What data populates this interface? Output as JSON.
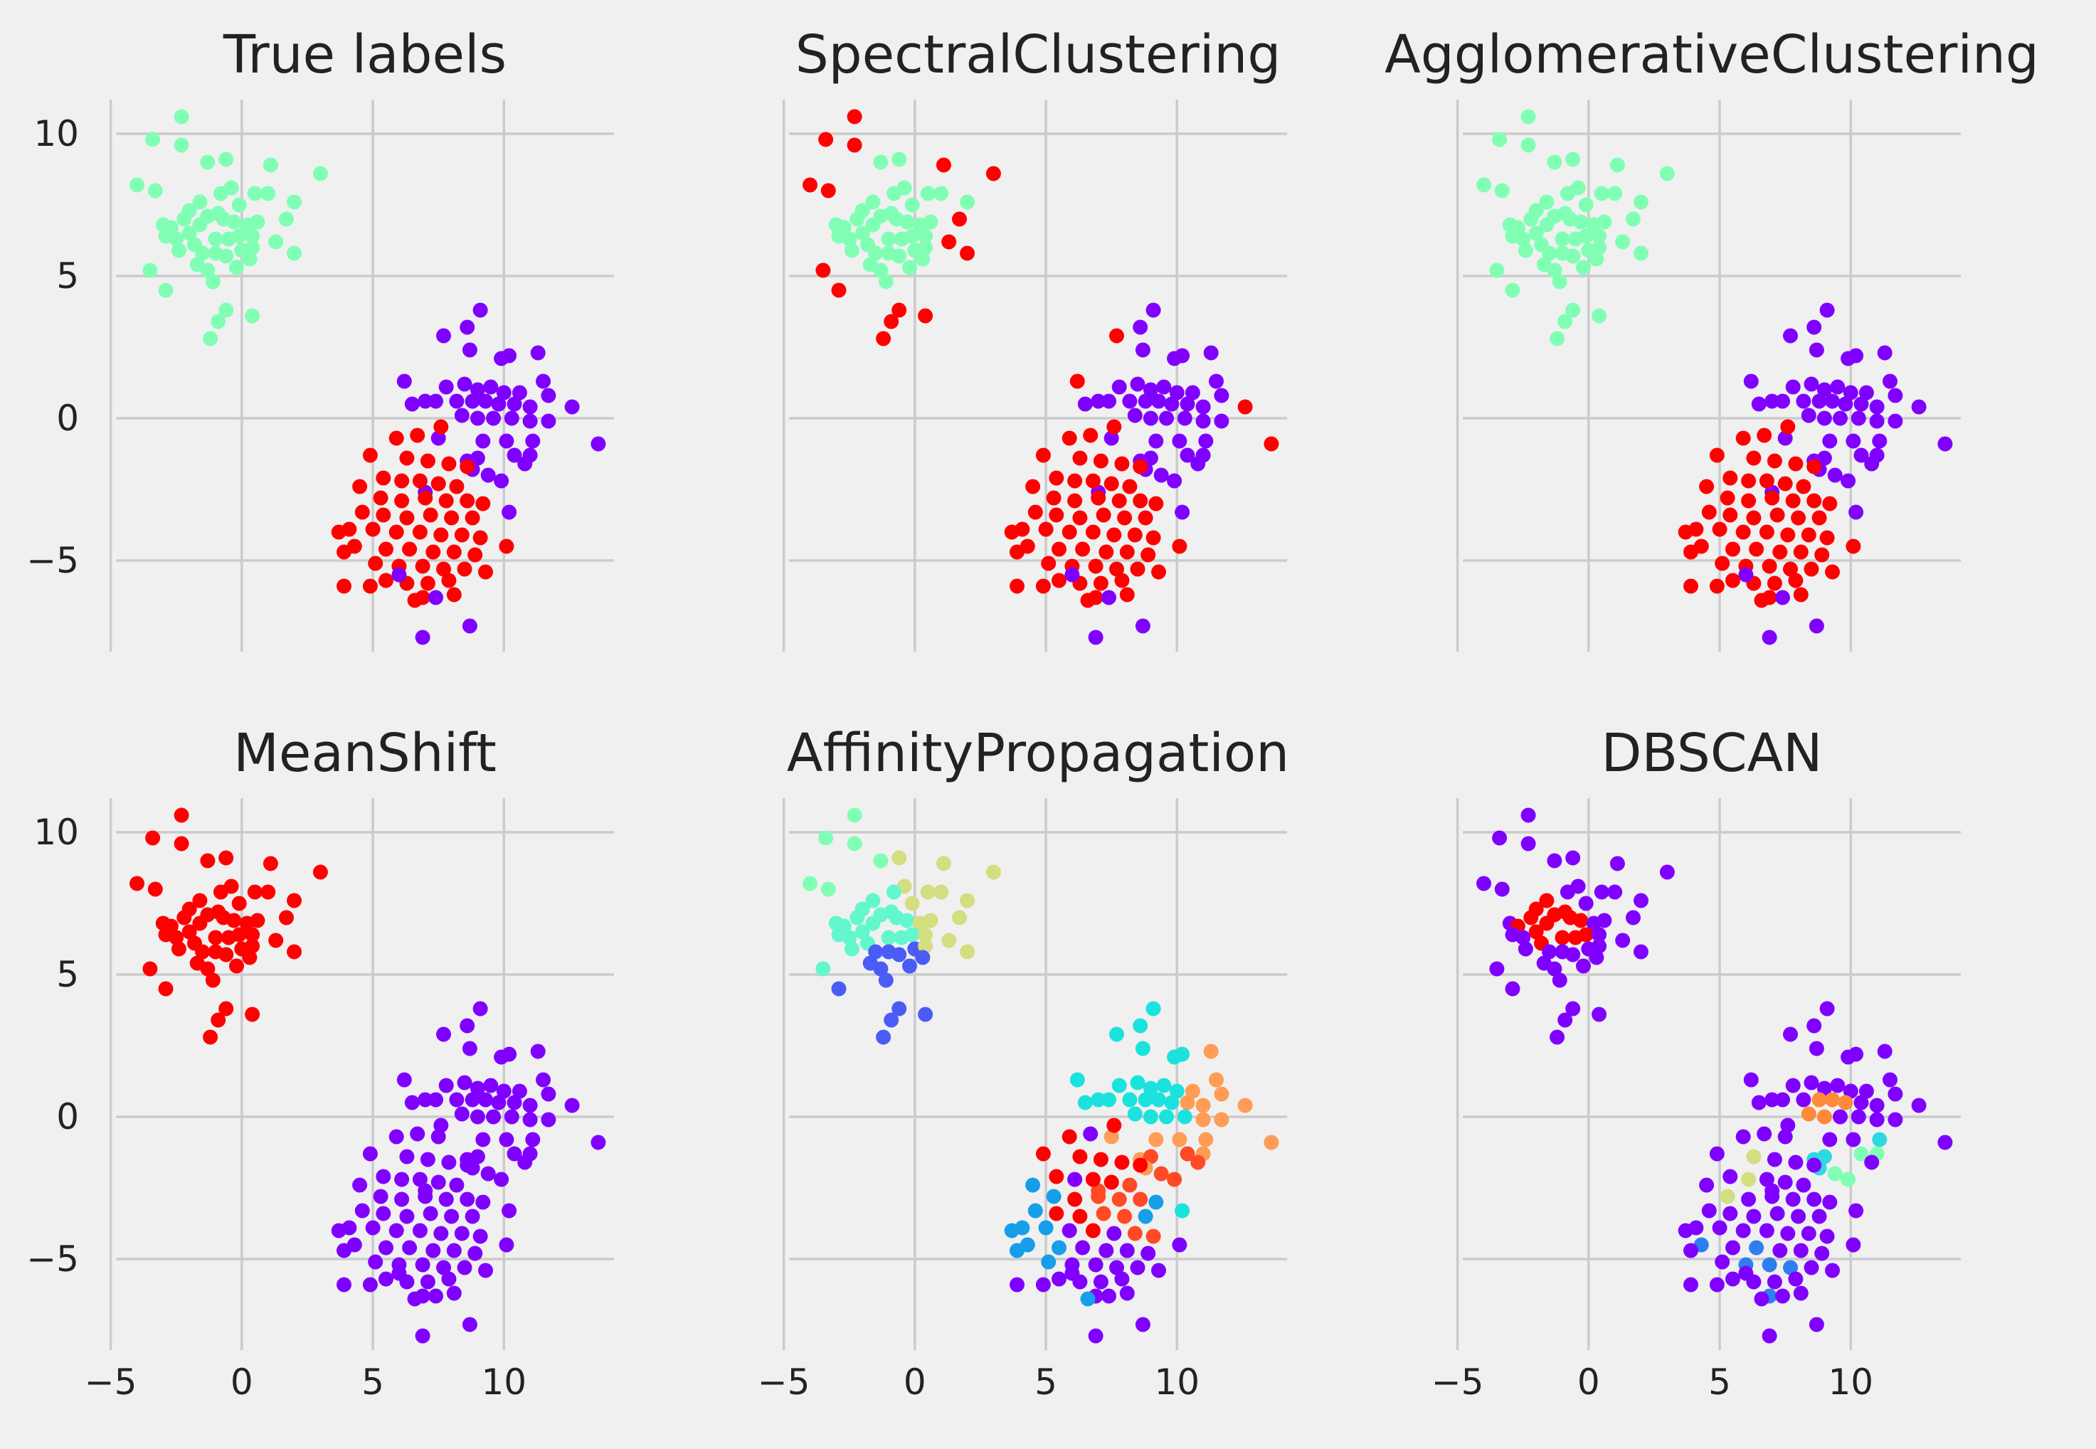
{
  "chart_data": {
    "type": "scatter",
    "x_ticks": [
      "−5",
      "0",
      "5",
      "10"
    ],
    "y_ticks": [
      "10",
      "5",
      "0",
      "−5"
    ],
    "x_tick_values": [
      -5,
      0,
      5,
      10
    ],
    "y_tick_values": [
      10,
      5,
      0,
      -5
    ],
    "xlim": [
      -4.8,
      14.2
    ],
    "ylim": [
      -8.2,
      11.2
    ],
    "grid": true,
    "layout": "2 rows x 3 columns, shared axes",
    "colors": {
      "red": "#ff0000",
      "purple": "#8000ff",
      "mint": "#80ffb4",
      "aqua": "#1ce2de",
      "orange": "#ff9c55",
      "orange_red": "#ff4a25",
      "khaki": "#d4dd80",
      "sky": "#169ee8",
      "royal": "#4a5cf5",
      "cobalt": "#2e7ef0",
      "teal": "#62f7cc",
      "light_aqua": "#2dd9e0",
      "dark_orange": "#ff8a3a"
    },
    "points": [
      [
        -2.3,
        10.6
      ],
      [
        -3.4,
        9.8
      ],
      [
        -2.3,
        9.6
      ],
      [
        -1.3,
        9.0
      ],
      [
        -0.6,
        9.1
      ],
      [
        -3.3,
        8.0
      ],
      [
        -0.4,
        8.1
      ],
      [
        -4.0,
        8.2
      ],
      [
        -0.8,
        7.9
      ],
      [
        0.5,
        7.9
      ],
      [
        1.0,
        7.9
      ],
      [
        3.0,
        8.6
      ],
      [
        1.1,
        8.9
      ],
      [
        -3.0,
        6.8
      ],
      [
        -2.7,
        6.7
      ],
      [
        -2.0,
        6.5
      ],
      [
        -1.6,
        6.8
      ],
      [
        -1.3,
        7.1
      ],
      [
        -0.9,
        7.2
      ],
      [
        -0.7,
        7.0
      ],
      [
        -0.3,
        6.9
      ],
      [
        0.2,
        6.8
      ],
      [
        0.6,
        6.9
      ],
      [
        -2.5,
        6.3
      ],
      [
        -1.8,
        6.1
      ],
      [
        -1.0,
        6.3
      ],
      [
        -0.5,
        6.3
      ],
      [
        -0.1,
        6.4
      ],
      [
        0.4,
        6.4
      ],
      [
        -2.9,
        6.4
      ],
      [
        -2.4,
        5.9
      ],
      [
        -1.5,
        5.8
      ],
      [
        -1.0,
        5.8
      ],
      [
        -0.6,
        5.7
      ],
      [
        0.0,
        5.9
      ],
      [
        0.4,
        6.0
      ],
      [
        1.3,
        6.2
      ],
      [
        2.0,
        5.8
      ],
      [
        -1.7,
        5.4
      ],
      [
        -1.3,
        5.2
      ],
      [
        -0.2,
        5.3
      ],
      [
        0.3,
        5.6
      ],
      [
        -3.5,
        5.2
      ],
      [
        -1.1,
        4.8
      ],
      [
        -2.9,
        4.5
      ],
      [
        -0.6,
        3.8
      ],
      [
        0.4,
        3.6
      ],
      [
        -0.9,
        3.4
      ],
      [
        -1.2,
        2.8
      ],
      [
        1.7,
        7.0
      ],
      [
        2.0,
        7.6
      ],
      [
        -2.0,
        7.3
      ],
      [
        -0.1,
        7.5
      ],
      [
        -1.6,
        7.6
      ],
      [
        -2.2,
        7.0
      ],
      [
        7.7,
        2.9
      ],
      [
        8.6,
        3.2
      ],
      [
        9.1,
        3.8
      ],
      [
        8.7,
        2.4
      ],
      [
        9.9,
        2.1
      ],
      [
        10.2,
        2.2
      ],
      [
        11.3,
        2.3
      ],
      [
        6.2,
        1.3
      ],
      [
        7.8,
        1.1
      ],
      [
        8.5,
        1.2
      ],
      [
        9.0,
        1.0
      ],
      [
        9.5,
        1.1
      ],
      [
        10.0,
        0.9
      ],
      [
        10.6,
        0.9
      ],
      [
        11.5,
        1.3
      ],
      [
        6.5,
        0.5
      ],
      [
        7.0,
        0.6
      ],
      [
        7.4,
        0.6
      ],
      [
        8.2,
        0.6
      ],
      [
        8.8,
        0.6
      ],
      [
        9.3,
        0.6
      ],
      [
        9.8,
        0.5
      ],
      [
        10.4,
        0.5
      ],
      [
        11.0,
        0.4
      ],
      [
        11.7,
        0.8
      ],
      [
        12.6,
        0.4
      ],
      [
        8.4,
        0.1
      ],
      [
        9.0,
        0.0
      ],
      [
        9.6,
        0.0
      ],
      [
        10.3,
        0.0
      ],
      [
        11.0,
        -0.1
      ],
      [
        11.7,
        -0.1
      ],
      [
        13.6,
        -0.9
      ],
      [
        9.2,
        -0.8
      ],
      [
        10.1,
        -0.8
      ],
      [
        11.1,
        -0.8
      ],
      [
        8.6,
        -1.5
      ],
      [
        9.0,
        -1.4
      ],
      [
        10.4,
        -1.3
      ],
      [
        11.0,
        -1.3
      ],
      [
        8.8,
        -1.8
      ],
      [
        9.4,
        -2.0
      ],
      [
        9.9,
        -2.2
      ],
      [
        10.8,
        -1.6
      ],
      [
        7.5,
        -0.7
      ],
      [
        10.2,
        -3.3
      ],
      [
        7.0,
        -2.6
      ],
      [
        6.7,
        -0.6
      ],
      [
        7.6,
        -0.3
      ],
      [
        5.9,
        -0.7
      ],
      [
        4.9,
        -1.3
      ],
      [
        6.3,
        -1.4
      ],
      [
        7.1,
        -1.5
      ],
      [
        7.9,
        -1.6
      ],
      [
        8.6,
        -1.7
      ],
      [
        5.4,
        -2.1
      ],
      [
        6.1,
        -2.2
      ],
      [
        6.8,
        -2.2
      ],
      [
        7.5,
        -2.3
      ],
      [
        8.2,
        -2.4
      ],
      [
        4.5,
        -2.4
      ],
      [
        5.3,
        -2.8
      ],
      [
        6.1,
        -2.9
      ],
      [
        7.0,
        -2.8
      ],
      [
        7.8,
        -2.9
      ],
      [
        8.6,
        -2.9
      ],
      [
        9.2,
        -3.0
      ],
      [
        4.6,
        -3.3
      ],
      [
        5.4,
        -3.4
      ],
      [
        6.3,
        -3.5
      ],
      [
        7.2,
        -3.4
      ],
      [
        8.0,
        -3.5
      ],
      [
        8.8,
        -3.5
      ],
      [
        4.1,
        -3.9
      ],
      [
        5.0,
        -3.9
      ],
      [
        5.9,
        -4.0
      ],
      [
        6.8,
        -4.0
      ],
      [
        7.6,
        -4.1
      ],
      [
        8.4,
        -4.1
      ],
      [
        9.1,
        -4.2
      ],
      [
        3.7,
        -4.0
      ],
      [
        4.3,
        -4.5
      ],
      [
        5.5,
        -4.6
      ],
      [
        6.4,
        -4.6
      ],
      [
        7.3,
        -4.7
      ],
      [
        8.1,
        -4.7
      ],
      [
        8.9,
        -4.8
      ],
      [
        10.1,
        -4.5
      ],
      [
        3.9,
        -4.7
      ],
      [
        5.1,
        -5.1
      ],
      [
        6.0,
        -5.2
      ],
      [
        6.9,
        -5.2
      ],
      [
        7.7,
        -5.3
      ],
      [
        8.5,
        -5.3
      ],
      [
        9.3,
        -5.4
      ],
      [
        5.5,
        -5.7
      ],
      [
        6.3,
        -5.8
      ],
      [
        7.1,
        -5.8
      ],
      [
        7.9,
        -5.7
      ],
      [
        4.9,
        -5.9
      ],
      [
        6.9,
        -6.3
      ],
      [
        8.1,
        -6.2
      ],
      [
        3.9,
        -5.9
      ],
      [
        6.6,
        -6.4
      ],
      [
        7.4,
        -6.3
      ],
      [
        8.7,
        -7.3
      ],
      [
        6.9,
        -7.7
      ],
      [
        6.0,
        -5.5
      ]
    ],
    "panels": [
      {
        "title": "True labels",
        "default_color": "#8000ff",
        "runs": [
          [
            0,
            55,
            "#80ffb4"
          ],
          [
            55,
            102,
            "#8000ff"
          ],
          [
            102,
            159,
            "#ff0000"
          ]
        ]
      },
      {
        "title": "SpectralClustering",
        "default_color": "#8000ff",
        "runs": [
          [
            0,
            55,
            "#80ffb4"
          ],
          [
            55,
            102,
            "#8000ff"
          ],
          [
            102,
            159,
            "#ff0000"
          ]
        ],
        "overrides": [
          [
            0,
            "#ff0000"
          ],
          [
            1,
            "#ff0000"
          ],
          [
            2,
            "#ff0000"
          ],
          [
            5,
            "#ff0000"
          ],
          [
            7,
            "#ff0000"
          ],
          [
            11,
            "#ff0000"
          ],
          [
            12,
            "#ff0000"
          ],
          [
            36,
            "#ff0000"
          ],
          [
            37,
            "#ff0000"
          ],
          [
            42,
            "#ff0000"
          ],
          [
            44,
            "#ff0000"
          ],
          [
            45,
            "#ff0000"
          ],
          [
            46,
            "#ff0000"
          ],
          [
            47,
            "#ff0000"
          ],
          [
            48,
            "#ff0000"
          ],
          [
            49,
            "#ff0000"
          ],
          [
            55,
            "#ff0000"
          ],
          [
            62,
            "#ff0000"
          ],
          [
            80,
            "#ff0000"
          ],
          [
            87,
            "#ff0000"
          ]
        ]
      },
      {
        "title": "AgglomerativeClustering",
        "default_color": "#8000ff",
        "runs": [
          [
            0,
            55,
            "#80ffb4"
          ],
          [
            55,
            102,
            "#8000ff"
          ],
          [
            102,
            159,
            "#ff0000"
          ]
        ]
      },
      {
        "title": "MeanShift",
        "default_color": "#8000ff",
        "runs": [
          [
            0,
            55,
            "#ff0000"
          ],
          [
            55,
            159,
            "#8000ff"
          ]
        ]
      },
      {
        "title": "AffinityPropagation",
        "default_color": "#8000ff",
        "runs": [
          [
            0,
            55,
            "#62f7cc"
          ],
          [
            55,
            102,
            "#1ce2de"
          ],
          [
            102,
            159,
            "#8000ff"
          ]
        ],
        "overrides": [
          [
            0,
            "#80ffb4"
          ],
          [
            1,
            "#80ffb4"
          ],
          [
            2,
            "#80ffb4"
          ],
          [
            3,
            "#80ffb4"
          ],
          [
            5,
            "#80ffb4"
          ],
          [
            7,
            "#80ffb4"
          ],
          [
            4,
            "#d4dd80"
          ],
          [
            6,
            "#d4dd80"
          ],
          [
            9,
            "#d4dd80"
          ],
          [
            10,
            "#d4dd80"
          ],
          [
            11,
            "#d4dd80"
          ],
          [
            12,
            "#d4dd80"
          ],
          [
            21,
            "#d4dd80"
          ],
          [
            22,
            "#d4dd80"
          ],
          [
            28,
            "#d4dd80"
          ],
          [
            36,
            "#d4dd80"
          ],
          [
            37,
            "#d4dd80"
          ],
          [
            49,
            "#d4dd80"
          ],
          [
            50,
            "#d4dd80"
          ],
          [
            35,
            "#d4dd80"
          ],
          [
            52,
            "#d4dd80"
          ],
          [
            31,
            "#4a5cf5"
          ],
          [
            32,
            "#4a5cf5"
          ],
          [
            33,
            "#4a5cf5"
          ],
          [
            34,
            "#4a5cf5"
          ],
          [
            38,
            "#4a5cf5"
          ],
          [
            39,
            "#4a5cf5"
          ],
          [
            40,
            "#4a5cf5"
          ],
          [
            41,
            "#4a5cf5"
          ],
          [
            43,
            "#4a5cf5"
          ],
          [
            44,
            "#4a5cf5"
          ],
          [
            45,
            "#4a5cf5"
          ],
          [
            46,
            "#4a5cf5"
          ],
          [
            47,
            "#4a5cf5"
          ],
          [
            48,
            "#4a5cf5"
          ],
          [
            61,
            "#ff9c55"
          ],
          [
            68,
            "#ff9c55"
          ],
          [
            69,
            "#ff9c55"
          ],
          [
            77,
            "#ff9c55"
          ],
          [
            78,
            "#ff9c55"
          ],
          [
            79,
            "#ff9c55"
          ],
          [
            80,
            "#ff9c55"
          ],
          [
            85,
            "#ff9c55"
          ],
          [
            86,
            "#ff9c55"
          ],
          [
            87,
            "#ff9c55"
          ],
          [
            88,
            "#ff9c55"
          ],
          [
            89,
            "#ff9c55"
          ],
          [
            90,
            "#ff9c55"
          ],
          [
            91,
            "#ff9c55"
          ],
          [
            94,
            "#ff9c55"
          ],
          [
            95,
            "#ff9c55"
          ],
          [
            99,
            "#ff9c55"
          ],
          [
            92,
            "#ff4a25"
          ],
          [
            93,
            "#ff4a25"
          ],
          [
            96,
            "#ff4a25"
          ],
          [
            97,
            "#ff4a25"
          ],
          [
            98,
            "#ff4a25"
          ],
          [
            101,
            "#ff4a25"
          ],
          [
            114,
            "#ff4a25"
          ],
          [
            118,
            "#ff4a25"
          ],
          [
            119,
            "#ff4a25"
          ],
          [
            120,
            "#ff4a25"
          ],
          [
            125,
            "#ff4a25"
          ],
          [
            126,
            "#ff4a25"
          ],
          [
            133,
            "#ff4a25"
          ],
          [
            134,
            "#ff4a25"
          ],
          [
            103,
            "#ff0000"
          ],
          [
            104,
            "#ff0000"
          ],
          [
            105,
            "#ff0000"
          ],
          [
            106,
            "#ff0000"
          ],
          [
            107,
            "#ff0000"
          ],
          [
            108,
            "#ff0000"
          ],
          [
            109,
            "#ff0000"
          ],
          [
            110,
            "#ff0000"
          ],
          [
            112,
            "#ff0000"
          ],
          [
            113,
            "#ff0000"
          ],
          [
            117,
            "#ff0000"
          ],
          [
            122,
            "#ff0000"
          ],
          [
            123,
            "#ff0000"
          ],
          [
            124,
            "#ff0000"
          ],
          [
            131,
            "#ff0000"
          ],
          [
            115,
            "#169ee8"
          ],
          [
            116,
            "#169ee8"
          ],
          [
            121,
            "#169ee8"
          ],
          [
            122,
            "#169ee8"
          ],
          [
            127,
            "#169ee8"
          ],
          [
            128,
            "#169ee8"
          ],
          [
            129,
            "#169ee8"
          ],
          [
            135,
            "#169ee8"
          ],
          [
            136,
            "#169ee8"
          ],
          [
            137,
            "#169ee8"
          ],
          [
            143,
            "#169ee8"
          ],
          [
            144,
            "#169ee8"
          ],
          [
            158,
            "#169ee8"
          ]
        ]
      },
      {
        "title": "DBSCAN",
        "default_color": "#8000ff",
        "runs": [
          [
            0,
            159,
            "#8000ff"
          ]
        ],
        "overrides": [
          [
            14,
            "#ff0000"
          ],
          [
            15,
            "#ff0000"
          ],
          [
            16,
            "#ff0000"
          ],
          [
            17,
            "#ff0000"
          ],
          [
            18,
            "#ff0000"
          ],
          [
            19,
            "#ff0000"
          ],
          [
            20,
            "#ff0000"
          ],
          [
            24,
            "#ff0000"
          ],
          [
            25,
            "#ff0000"
          ],
          [
            26,
            "#ff0000"
          ],
          [
            27,
            "#ff0000"
          ],
          [
            53,
            "#ff0000"
          ],
          [
            54,
            "#ff0000"
          ],
          [
            51,
            "#ff0000"
          ],
          [
            74,
            "#ff8a3a"
          ],
          [
            75,
            "#ff8a3a"
          ],
          [
            76,
            "#ff8a3a"
          ],
          [
            81,
            "#ff8a3a"
          ],
          [
            82,
            "#ff8a3a"
          ],
          [
            90,
            "#2dd9e0"
          ],
          [
            91,
            "#2dd9e0"
          ],
          [
            92,
            "#2dd9e0"
          ],
          [
            95,
            "#2dd9e0"
          ],
          [
            93,
            "#80ffb4"
          ],
          [
            94,
            "#80ffb4"
          ],
          [
            97,
            "#80ffb4"
          ],
          [
            96,
            "#80ffb4"
          ],
          [
            106,
            "#d4dd80"
          ],
          [
            111,
            "#d4dd80"
          ],
          [
            116,
            "#d4dd80"
          ],
          [
            136,
            "#2e7ef0"
          ],
          [
            138,
            "#2e7ef0"
          ],
          [
            145,
            "#2e7ef0"
          ],
          [
            146,
            "#2e7ef0"
          ],
          [
            147,
            "#2e7ef0"
          ],
          [
            155,
            "#2e7ef0"
          ]
        ]
      }
    ]
  }
}
